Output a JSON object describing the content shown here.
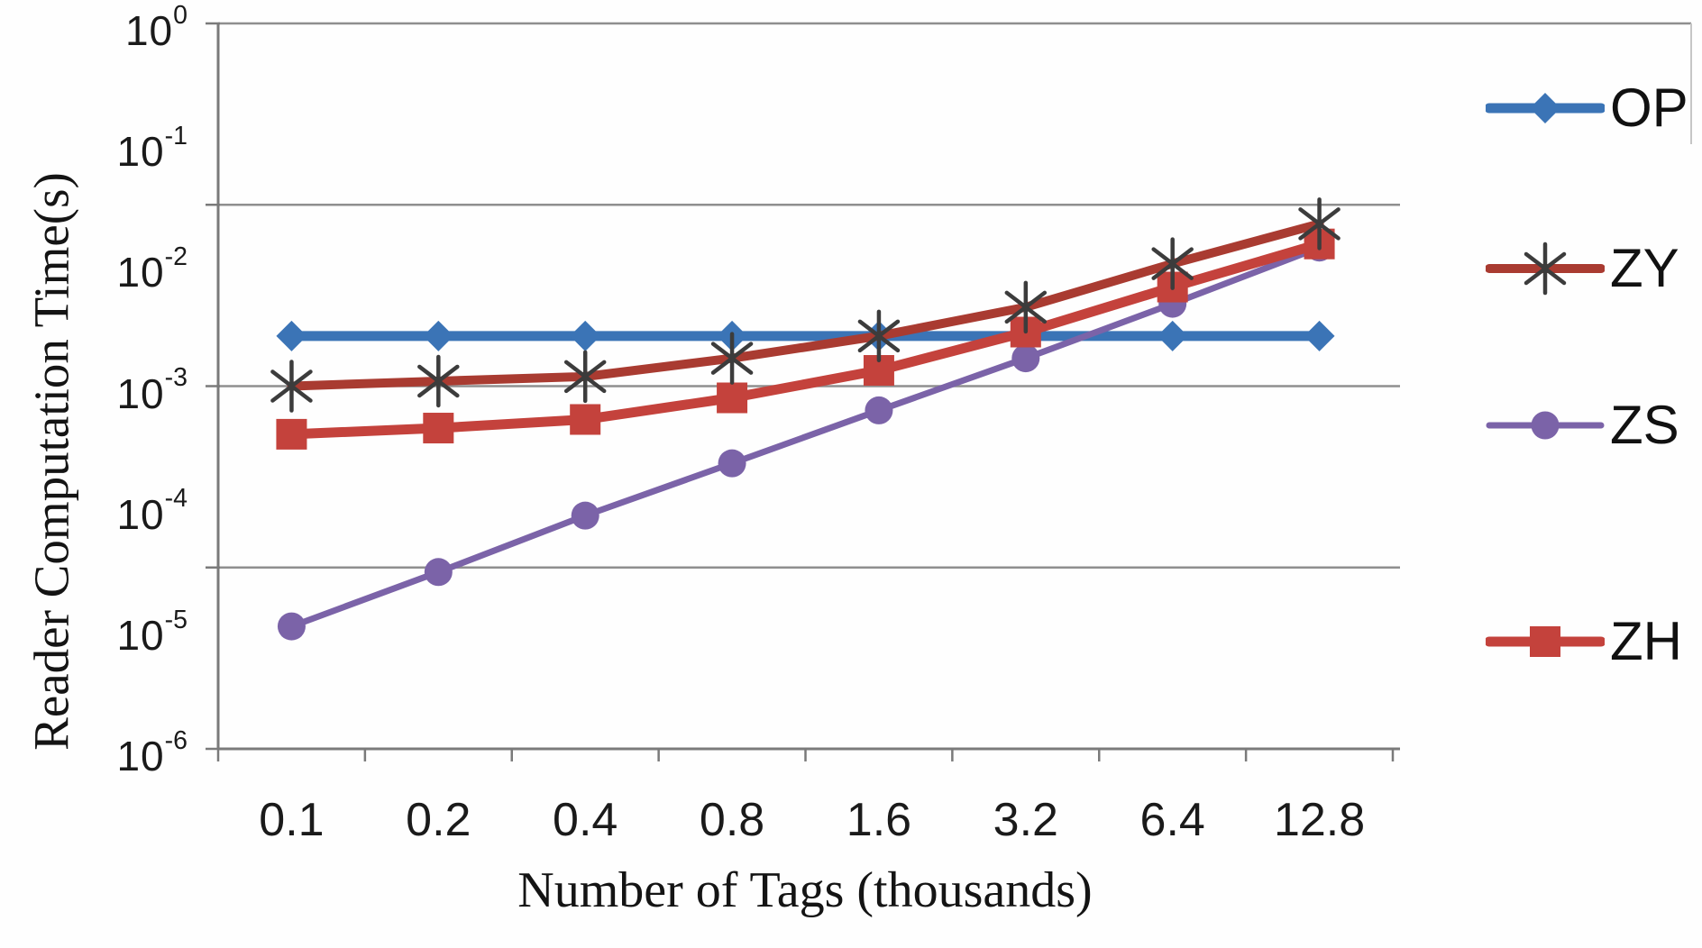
{
  "chart_data": {
    "type": "line",
    "title": "",
    "xlabel": "Number of Tags (thousands)",
    "ylabel": "Reader Computation Time(s)",
    "x_categories": [
      "0.1",
      "0.2",
      "0.4",
      "0.8",
      "1.6",
      "3.2",
      "6.4",
      "12.8"
    ],
    "y_axis": {
      "scale": "log10",
      "min": 1e-06,
      "max": 1,
      "tick_exponents": [
        0,
        -1,
        -2,
        -3,
        -4,
        -5,
        -6
      ],
      "gridline_exponents": [
        -1.5,
        -3,
        -4.5
      ],
      "grid_color": "#8f8f8f",
      "axis_color": "#7a7a7a"
    },
    "legend_position": "right",
    "series": [
      {
        "name": "OP",
        "color": "#3B74B6",
        "marker": "diamond",
        "values": [
          0.0026,
          0.0026,
          0.0026,
          0.0026,
          0.0026,
          0.0026,
          0.0026,
          0.0026
        ]
      },
      {
        "name": "ZY",
        "color": "#A93B31",
        "marker": "asterisk",
        "ray_color": "#3C3C3C",
        "values": [
          0.001,
          0.0011,
          0.0012,
          0.0017,
          0.0026,
          0.0045,
          0.0103,
          0.022
        ]
      },
      {
        "name": "ZS",
        "color": "#7B63A8",
        "marker": "circle",
        "values": [
          1.03e-05,
          2.9e-05,
          8.5e-05,
          0.00023,
          0.00063,
          0.0017,
          0.0048,
          0.014
        ]
      },
      {
        "name": "ZH",
        "color": "#C4423C",
        "marker": "square",
        "values": [
          0.0004,
          0.00045,
          0.00053,
          0.0008,
          0.00135,
          0.0028,
          0.0066,
          0.015
        ]
      }
    ]
  }
}
